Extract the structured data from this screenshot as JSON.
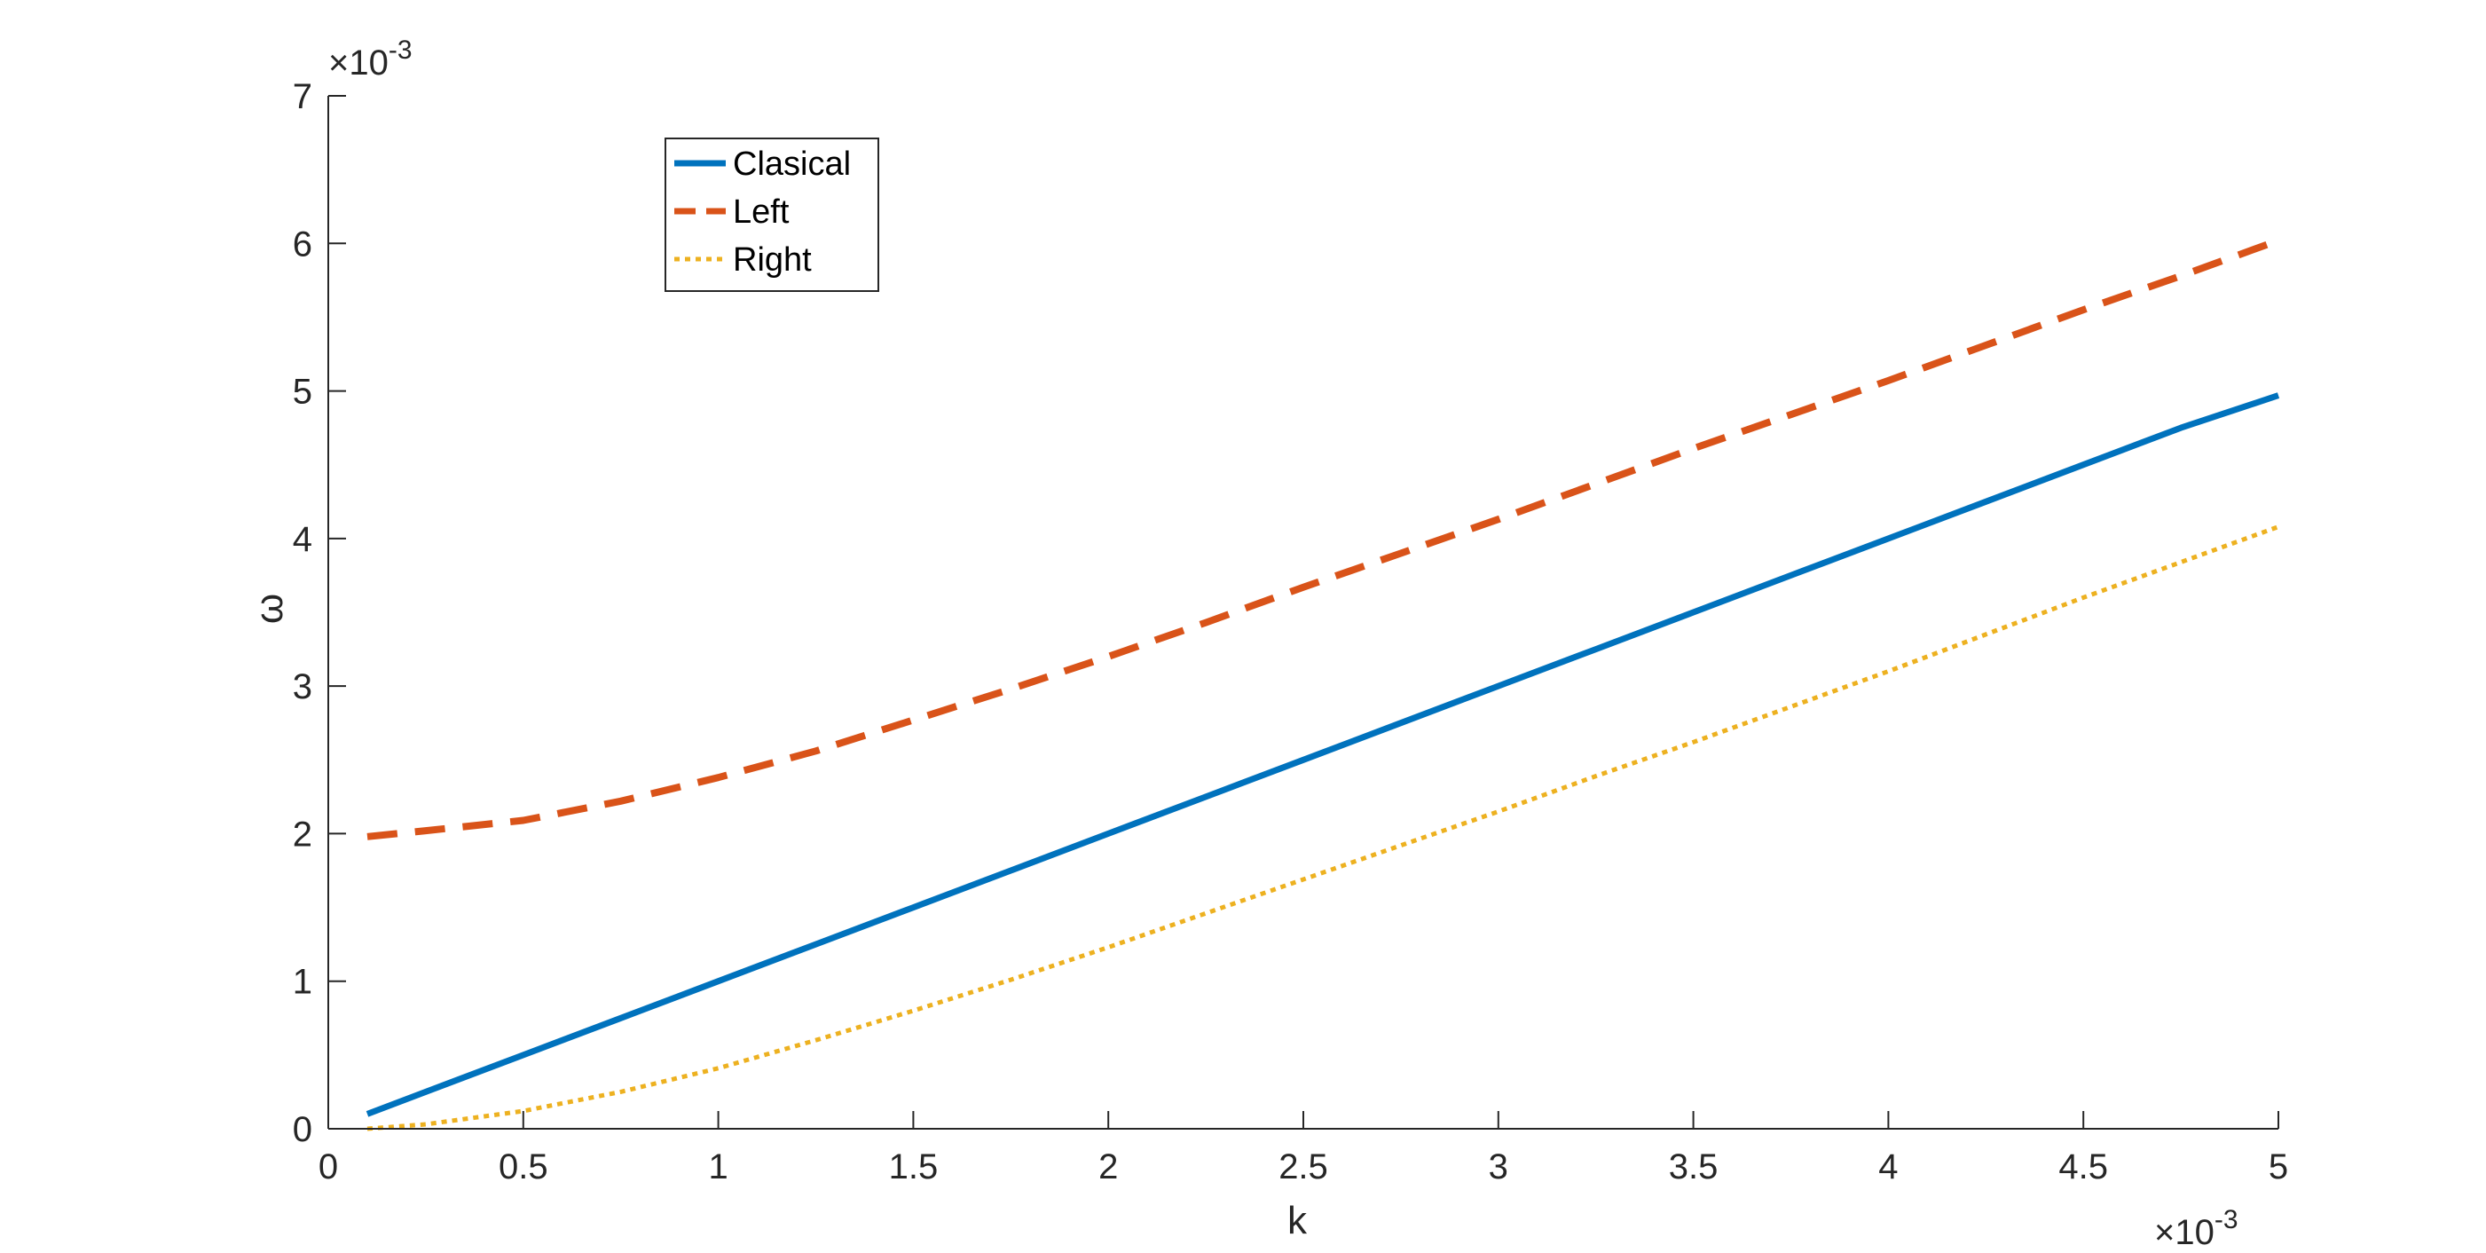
{
  "chart_data": {
    "type": "line",
    "title": "",
    "xlabel": "k",
    "ylabel": "ω",
    "x_multiplier": "×10",
    "x_multiplier_exp": "-3",
    "y_multiplier": "×10",
    "y_multiplier_exp": "-3",
    "xlim": [
      0,
      5
    ],
    "ylim": [
      0,
      7
    ],
    "x_ticks": [
      "0",
      "0.5",
      "1",
      "1.5",
      "2",
      "2.5",
      "3",
      "3.5",
      "4",
      "4.5",
      "5"
    ],
    "y_ticks": [
      "0",
      "1",
      "2",
      "3",
      "4",
      "5",
      "6",
      "7"
    ],
    "grid": false,
    "legend_position": "top-left",
    "x": [
      0.1,
      0.25,
      0.5,
      0.75,
      1.0,
      1.25,
      1.5,
      1.75,
      2.0,
      2.25,
      2.5,
      2.75,
      3.0,
      3.25,
      3.5,
      3.75,
      4.0,
      4.25,
      4.5,
      4.75,
      5.0
    ],
    "series": [
      {
        "name": "Clasical",
        "color": "#0072BD",
        "style": "solid",
        "values": [
          0.1,
          0.25,
          0.5,
          0.75,
          1.0,
          1.25,
          1.5,
          1.75,
          2.0,
          2.25,
          2.5,
          2.75,
          3.0,
          3.25,
          3.5,
          3.75,
          4.0,
          4.25,
          4.5,
          4.75,
          4.97
        ]
      },
      {
        "name": "Left",
        "color": "#D95319",
        "style": "dashed",
        "values": [
          1.98,
          2.02,
          2.09,
          2.22,
          2.38,
          2.56,
          2.77,
          2.98,
          3.2,
          3.43,
          3.67,
          3.9,
          4.13,
          4.37,
          4.61,
          4.84,
          5.07,
          5.31,
          5.55,
          5.78,
          6.02
        ]
      },
      {
        "name": "Right",
        "color": "#EDB120",
        "style": "dotted",
        "values": [
          0.0,
          0.03,
          0.12,
          0.25,
          0.41,
          0.6,
          0.8,
          1.01,
          1.23,
          1.46,
          1.69,
          1.92,
          2.15,
          2.39,
          2.62,
          2.86,
          3.1,
          3.35,
          3.6,
          3.84,
          4.08
        ]
      }
    ]
  }
}
